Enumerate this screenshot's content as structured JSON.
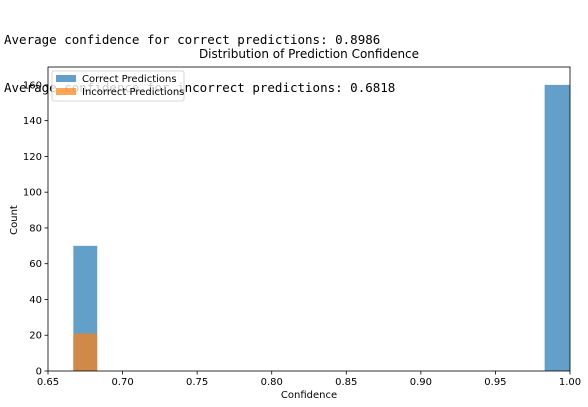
{
  "console": {
    "lines": [
      "Average confidence for correct predictions: 0.8986",
      "Average confidence for incorrect predictions: 0.6818"
    ]
  },
  "chart_data": {
    "type": "bar",
    "title": "Distribution of Prediction Confidence",
    "xlabel": "Confidence",
    "ylabel": "Count",
    "xlim": [
      0.65,
      1.0
    ],
    "ylim": [
      0,
      170
    ],
    "x_ticks": [
      0.65,
      0.7,
      0.75,
      0.8,
      0.85,
      0.9,
      0.95,
      1.0
    ],
    "x_tick_labels": [
      "0.65",
      "0.70",
      "0.75",
      "0.80",
      "0.85",
      "0.90",
      "0.95",
      "1.00"
    ],
    "y_ticks": [
      0,
      20,
      40,
      60,
      80,
      100,
      120,
      140,
      160
    ],
    "y_tick_labels": [
      "0",
      "20",
      "40",
      "60",
      "80",
      "100",
      "120",
      "140",
      "160"
    ],
    "legend_position": "upper-left",
    "grid": false,
    "series": [
      {
        "name": "Correct Predictions",
        "color": "#1f77b4",
        "bins": [
          {
            "x0": 0.667,
            "x1": 0.683,
            "count": 70
          },
          {
            "x0": 0.983,
            "x1": 1.0,
            "count": 160
          }
        ]
      },
      {
        "name": "Incorrect Predictions",
        "color": "#ff7f0e",
        "bins": [
          {
            "x0": 0.667,
            "x1": 0.683,
            "count": 21
          }
        ]
      }
    ]
  }
}
